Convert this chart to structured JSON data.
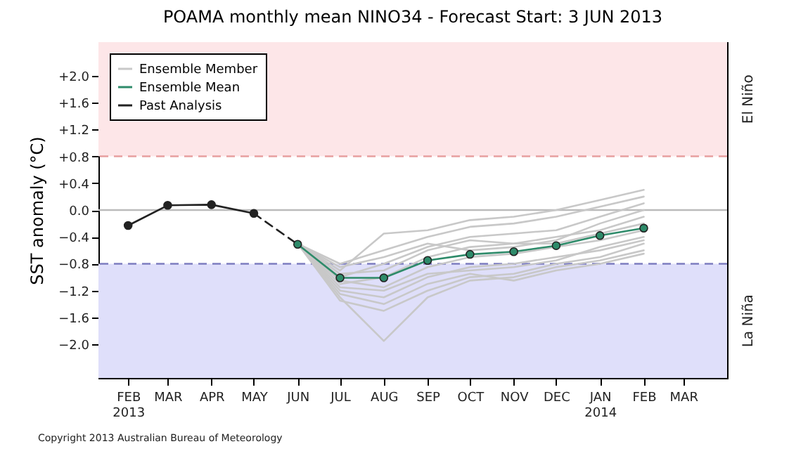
{
  "chart_data": {
    "type": "line",
    "title": "POAMA monthly mean NINO34 - Forecast Start: 3 JUN 2013",
    "ylabel": "SST anomaly (°C)",
    "annotations": [
      "Copyright 2013 Australian Bureau of Meteorology"
    ],
    "xlim": [
      "2013-01-11",
      "2014-04-01"
    ],
    "xticks": [
      {
        "value": "2013-02",
        "label": "FEB 2013"
      },
      {
        "value": "2013-03",
        "label": "MAR"
      },
      {
        "value": "2013-04",
        "label": "APR"
      },
      {
        "value": "2013-05",
        "label": "MAY"
      },
      {
        "value": "2013-06",
        "label": "JUN"
      },
      {
        "value": "2013-07",
        "label": "JUL"
      },
      {
        "value": "2013-08",
        "label": "AUG"
      },
      {
        "value": "2013-09",
        "label": "SEP"
      },
      {
        "value": "2013-10",
        "label": "OCT"
      },
      {
        "value": "2013-11",
        "label": "NOV"
      },
      {
        "value": "2013-12",
        "label": "DEC"
      },
      {
        "value": "2014-01",
        "label": "JAN 2014"
      },
      {
        "value": "2014-02",
        "label": "FEB"
      },
      {
        "value": "2014-03",
        "label": "MAR"
      }
    ],
    "ylim": [
      -2.5,
      2.5
    ],
    "yticks": [
      {
        "value": -2.0,
        "label": "−2.0"
      },
      {
        "value": -1.6,
        "label": "−1.6"
      },
      {
        "value": -1.2,
        "label": "−1.2"
      },
      {
        "value": -0.8,
        "label": "−0.8"
      },
      {
        "value": -0.4,
        "label": "−0.4"
      },
      {
        "value": 0,
        "label": "0.0"
      },
      {
        "value": 0.4,
        "label": "+0.4"
      },
      {
        "value": 0.8,
        "label": "+0.8"
      },
      {
        "value": 1.2,
        "label": "+1.2"
      },
      {
        "value": 1.6,
        "label": "+1.6"
      },
      {
        "value": 2.0,
        "label": "+2.0"
      }
    ],
    "bands": [
      {
        "axis": "y",
        "from": 0.8,
        "to": 2.5,
        "label": "El Niño",
        "color": "#fde6e8"
      },
      {
        "axis": "y",
        "from": -2.5,
        "to": -0.8,
        "label": "La Niña",
        "color": "#dfdffa"
      }
    ],
    "ref_lines": [
      {
        "axis": "y",
        "value": 0.8,
        "color": "#e8a0a0",
        "line_style": "dashed"
      },
      {
        "axis": "y",
        "value": -0.8,
        "color": "#7d7dc0",
        "line_style": "dashed"
      },
      {
        "axis": "y",
        "value": 0,
        "color": "#bbbbbb",
        "line_style": "solid"
      }
    ],
    "legend": "top left",
    "grid": false,
    "marker": "circle",
    "line_style": "solid",
    "x": [
      "2013-06",
      "2013-07",
      "2013-08",
      "2013-09",
      "2013-10",
      "2013-11",
      "2013-12",
      "2014-01",
      "2014-02"
    ],
    "series": [
      {
        "name": "Ensemble Member",
        "color": "#c8c8c8",
        "marker": "none",
        "values": [
          -0.5,
          -0.9,
          -0.35,
          -0.3,
          -0.15,
          -0.1,
          0.0,
          0.15,
          0.3
        ]
      },
      {
        "color": "#c8c8c8",
        "marker": "none",
        "values": [
          -0.5,
          -0.8,
          -0.6,
          -0.4,
          -0.25,
          -0.2,
          -0.1,
          0.05,
          0.2
        ]
      },
      {
        "color": "#c8c8c8",
        "marker": "none",
        "values": [
          -0.5,
          -1.0,
          -0.8,
          -0.55,
          -0.4,
          -0.35,
          -0.3,
          -0.1,
          0.1
        ]
      },
      {
        "color": "#c8c8c8",
        "marker": "none",
        "values": [
          -0.5,
          -1.1,
          -1.0,
          -0.7,
          -0.55,
          -0.5,
          -0.4,
          -0.3,
          -0.1
        ]
      },
      {
        "color": "#c8c8c8",
        "marker": "none",
        "values": [
          -0.5,
          -1.05,
          -1.15,
          -0.85,
          -0.7,
          -0.65,
          -0.55,
          -0.45,
          -0.3
        ]
      },
      {
        "color": "#c8c8c8",
        "marker": "none",
        "values": [
          -0.5,
          -1.2,
          -1.3,
          -1.0,
          -0.85,
          -0.8,
          -0.7,
          -0.6,
          -0.45
        ]
      },
      {
        "color": "#c8c8c8",
        "marker": "none",
        "values": [
          -0.5,
          -1.3,
          -1.95,
          -1.3,
          -1.05,
          -1.0,
          -0.85,
          -0.75,
          -0.6
        ]
      },
      {
        "color": "#c8c8c8",
        "marker": "none",
        "values": [
          -0.5,
          -1.35,
          -1.5,
          -1.2,
          -1.0,
          -0.95,
          -0.8,
          -0.7,
          -0.5
        ]
      },
      {
        "color": "#c8c8c8",
        "marker": "none",
        "values": [
          -0.5,
          -0.95,
          -0.9,
          -0.6,
          -0.45,
          -0.5,
          -0.5,
          -0.35,
          -0.2
        ]
      },
      {
        "color": "#c8c8c8",
        "marker": "none",
        "values": [
          -0.5,
          -1.15,
          -1.2,
          -0.95,
          -0.9,
          -0.85,
          -0.75,
          -0.55,
          -0.4
        ]
      },
      {
        "color": "#c8c8c8",
        "marker": "none",
        "values": [
          -0.5,
          -0.85,
          -0.7,
          -0.5,
          -0.6,
          -0.55,
          -0.45,
          -0.2,
          0.0
        ]
      },
      {
        "color": "#c8c8c8",
        "marker": "none",
        "values": [
          -0.5,
          -1.25,
          -1.4,
          -1.1,
          -0.95,
          -1.05,
          -0.9,
          -0.8,
          -0.65
        ]
      },
      {
        "name": "Ensemble Mean",
        "color": "#2e8b6a",
        "values": [
          -0.51,
          -1.01,
          -1.01,
          -0.75,
          -0.66,
          -0.62,
          -0.53,
          -0.38,
          -0.27
        ]
      },
      {
        "name": "Past Analysis",
        "color": "#222222",
        "x": [
          "2013-02",
          "2013-03",
          "2013-04",
          "2013-05"
        ],
        "values": [
          -0.23,
          0.07,
          0.08,
          -0.05
        ]
      },
      {
        "color": "#222222",
        "marker": "none",
        "line_style": "dashed",
        "x": [
          "2013-05",
          "2013-06"
        ],
        "values": [
          -0.05,
          -0.51
        ]
      }
    ]
  }
}
